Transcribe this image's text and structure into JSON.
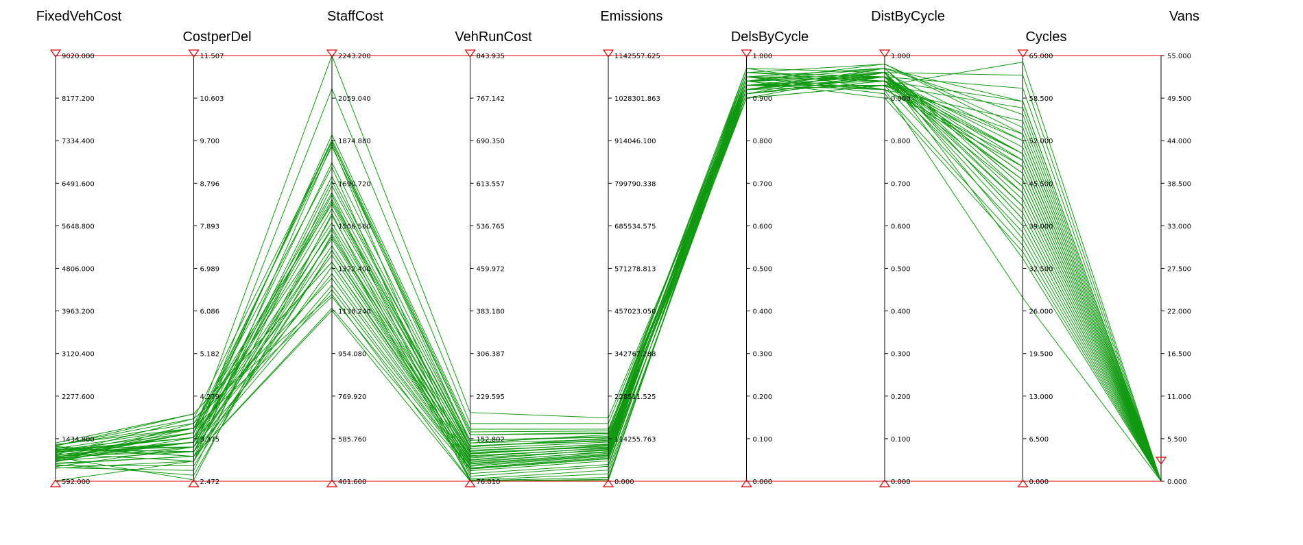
{
  "colors": {
    "lines": "#109910",
    "bounds": "#e00000",
    "axis": "#000000"
  },
  "chart_data": {
    "type": "parallel-coordinates",
    "axes": [
      {
        "name": "FixedVehCost",
        "min": 592.0,
        "max": 9020.0,
        "ticks": [
          "592.000",
          "1434.800",
          "2277.600",
          "3120.400",
          "3963.200",
          "4806.000",
          "5648.800",
          "6491.600",
          "7334.400",
          "8177.200",
          "9020.000"
        ]
      },
      {
        "name": "CostperDel",
        "min": 2.472,
        "max": 11.507,
        "ticks": [
          "2.472",
          "3.375",
          "4.279",
          "5.182",
          "6.086",
          "6.989",
          "7.893",
          "8.796",
          "9.700",
          "10.603",
          "11.507"
        ]
      },
      {
        "name": "StaffCost",
        "min": 401.6,
        "max": 2243.2,
        "ticks": [
          "401.600",
          "585.760",
          "769.920",
          "954.080",
          "1138.240",
          "1322.400",
          "1506.560",
          "1690.720",
          "1874.880",
          "2059.040",
          "2243.200"
        ]
      },
      {
        "name": "VehRunCost",
        "min": 76.01,
        "max": 843.935,
        "ticks": [
          "76.010",
          "152.802",
          "229.595",
          "306.387",
          "383.180",
          "459.972",
          "536.765",
          "613.557",
          "690.350",
          "767.142",
          "843.935"
        ]
      },
      {
        "name": "Emissions",
        "min": 0.0,
        "max": 1142557.625,
        "ticks": [
          "0.000",
          "114255.763",
          "228511.525",
          "342767.288",
          "457023.050",
          "571278.813",
          "685534.575",
          "799790.338",
          "914046.100",
          "1028301.863",
          "1142557.625"
        ]
      },
      {
        "name": "DelsByCycle",
        "min": 0.0,
        "max": 1.0,
        "ticks": [
          "0.000",
          "0.100",
          "0.200",
          "0.300",
          "0.400",
          "0.500",
          "0.600",
          "0.700",
          "0.800",
          "0.900",
          "1.000"
        ]
      },
      {
        "name": "DistByCycle",
        "min": 0.0,
        "max": 1.0,
        "ticks": [
          "0.000",
          "0.100",
          "0.200",
          "0.300",
          "0.400",
          "0.500",
          "0.600",
          "0.700",
          "0.800",
          "0.900",
          "1.000"
        ]
      },
      {
        "name": "Cycles",
        "min": 0.0,
        "max": 65.0,
        "ticks": [
          "0.000",
          "6.500",
          "13.000",
          "19.500",
          "26.000",
          "32.500",
          "39.000",
          "45.500",
          "52.000",
          "58.500",
          "65.000"
        ]
      },
      {
        "name": "Vans",
        "min": 0.0,
        "max": 55.0,
        "ticks": [
          "0.000",
          "5.500",
          "11.000",
          "16.500",
          "22.000",
          "27.500",
          "33.000",
          "38.500",
          "44.000",
          "49.500",
          "55.000"
        ]
      }
    ],
    "series": [
      [
        1050,
        3.3,
        1900,
        170,
        140000,
        0.9,
        0.93,
        50,
        0
      ],
      [
        1150,
        3.6,
        1850,
        160,
        130000,
        0.91,
        0.95,
        48,
        0
      ],
      [
        1250,
        3.2,
        1780,
        150,
        120000,
        0.92,
        0.96,
        52,
        0
      ],
      [
        950,
        3.0,
        1700,
        140,
        110000,
        0.93,
        0.94,
        46,
        0
      ],
      [
        1100,
        3.5,
        1650,
        135,
        105000,
        0.94,
        0.97,
        44,
        0
      ],
      [
        1300,
        3.7,
        1600,
        130,
        100000,
        0.95,
        0.92,
        55,
        0
      ],
      [
        850,
        2.9,
        1550,
        125,
        95000,
        0.96,
        0.95,
        42,
        0
      ],
      [
        1000,
        3.1,
        1500,
        120,
        90000,
        0.97,
        0.96,
        40,
        0
      ],
      [
        1200,
        3.4,
        1450,
        115,
        85000,
        0.92,
        0.93,
        38,
        0
      ],
      [
        900,
        2.8,
        1400,
        110,
        80000,
        0.93,
        0.94,
        58,
        0
      ],
      [
        1350,
        3.9,
        1350,
        108,
        75000,
        0.94,
        0.95,
        60,
        0
      ],
      [
        1080,
        3.3,
        1300,
        105,
        70000,
        0.95,
        0.91,
        36,
        0
      ],
      [
        1180,
        3.2,
        1250,
        100,
        65000,
        0.9,
        0.96,
        34,
        0
      ],
      [
        1020,
        3.6,
        1200,
        98,
        60000,
        0.91,
        0.97,
        45,
        0
      ],
      [
        1280,
        3.0,
        1150,
        95,
        55000,
        0.92,
        0.95,
        50,
        0
      ],
      [
        980,
        3.4,
        1880,
        165,
        135000,
        0.96,
        0.98,
        53,
        0
      ],
      [
        1120,
        3.8,
        1870,
        160,
        128000,
        0.97,
        0.92,
        49,
        0
      ],
      [
        1230,
        3.1,
        1720,
        150,
        118000,
        0.93,
        0.95,
        47,
        0
      ],
      [
        860,
        2.7,
        1680,
        145,
        112000,
        0.94,
        0.96,
        43,
        0
      ],
      [
        1060,
        3.5,
        1620,
        140,
        108000,
        0.95,
        0.94,
        41,
        0
      ],
      [
        1160,
        3.3,
        1580,
        132,
        98000,
        0.92,
        0.97,
        56,
        0
      ],
      [
        1320,
        3.6,
        1520,
        128,
        92000,
        0.9,
        0.93,
        57,
        0
      ],
      [
        920,
        2.6,
        1470,
        122,
        88000,
        0.91,
        0.95,
        39,
        0
      ],
      [
        1040,
        3.2,
        1420,
        118,
        83000,
        0.92,
        0.96,
        37,
        0
      ],
      [
        1190,
        3.4,
        1380,
        112,
        78000,
        0.93,
        0.94,
        52,
        0
      ],
      [
        1260,
        3.0,
        1330,
        107,
        72000,
        0.94,
        0.92,
        48,
        0
      ],
      [
        970,
        3.7,
        1280,
        103,
        68000,
        0.95,
        0.97,
        45,
        0
      ],
      [
        1090,
        3.1,
        1230,
        99,
        62000,
        0.96,
        0.95,
        51,
        0
      ],
      [
        1210,
        3.5,
        2243,
        200,
        170000,
        0.92,
        0.96,
        62,
        0
      ],
      [
        1010,
        3.3,
        2100,
        180,
        155000,
        0.93,
        0.93,
        64,
        0
      ],
      [
        1140,
        2.9,
        1860,
        90,
        45000,
        0.94,
        0.98,
        54,
        0
      ],
      [
        1240,
        3.6,
        1760,
        85,
        40000,
        0.95,
        0.95,
        46,
        0
      ],
      [
        880,
        3.2,
        1640,
        80,
        30000,
        0.91,
        0.94,
        44,
        0
      ],
      [
        1070,
        2.5,
        1560,
        78,
        20000,
        0.92,
        0.96,
        40,
        0
      ],
      [
        1170,
        3.4,
        1490,
        77,
        10000,
        0.93,
        0.92,
        28,
        0
      ],
      [
        1300,
        3.8,
        1210,
        76.5,
        5000,
        0.94,
        0.9,
        35,
        0
      ],
      [
        940,
        3.0,
        1140,
        76.2,
        2000,
        0.95,
        0.97,
        58,
        0
      ],
      [
        1030,
        3.5,
        1870,
        145,
        125000,
        0.96,
        0.94,
        50,
        0
      ],
      [
        1110,
        3.3,
        1610,
        138,
        116000,
        0.91,
        0.95,
        47,
        0
      ],
      [
        1220,
        3.1,
        1460,
        126,
        96000,
        0.92,
        0.93,
        53,
        0
      ],
      [
        600,
        2.9,
        1400,
        120,
        90000,
        0.93,
        0.96,
        42,
        0
      ],
      [
        1290,
        3.9,
        1350,
        114,
        86000,
        0.94,
        0.95,
        49,
        0
      ]
    ],
    "bounds": {
      "upper": 1.0,
      "lower": 0.0
    },
    "legend": "none"
  }
}
